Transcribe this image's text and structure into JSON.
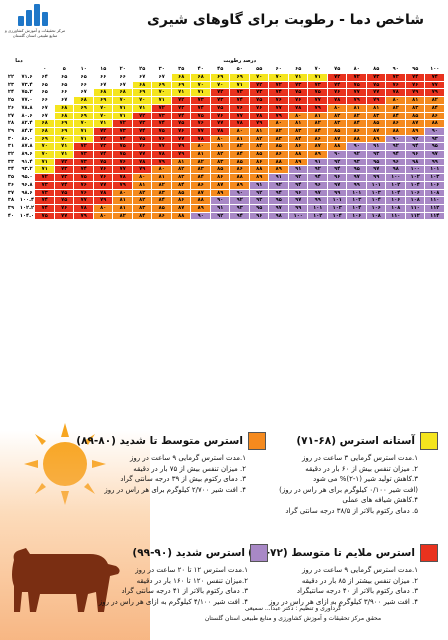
{
  "header": {
    "title": "شاخص دما - رطوبت برای گاوهای شیری",
    "logo_text": "مرکز تحقیقات و آموزش کشاورزی و منابع طبیعی استان گلستان"
  },
  "table": {
    "temp_c_label": "دما",
    "humidity_label": "درصد رطوبت",
    "humidity": [
      0,
      5,
      10,
      15,
      20,
      25,
      30,
      35,
      40,
      45,
      50,
      55,
      60,
      65,
      70,
      75,
      80,
      85,
      90,
      95,
      100
    ],
    "rows": [
      {
        "c": "۲۲",
        "f": "۷۱.۶",
        "v": [
          64,
          65,
          65,
          66,
          66,
          67,
          67,
          68,
          68,
          69,
          69,
          70,
          70,
          71,
          71,
          72,
          72,
          73,
          73,
          74,
          74
        ]
      },
      {
        "c": "۲۳",
        "f": "۷۳.۴",
        "v": [
          65,
          65,
          66,
          67,
          67,
          68,
          69,
          69,
          70,
          70,
          71,
          72,
          72,
          73,
          73,
          74,
          75,
          75,
          76,
          76,
          77
        ]
      },
      {
        "c": "۲۴",
        "f": "۷۵.۲",
        "v": [
          65,
          66,
          67,
          68,
          68,
          69,
          70,
          71,
          71,
          72,
          73,
          73,
          74,
          75,
          75,
          76,
          77,
          77,
          78,
          79,
          79
        ]
      },
      {
        "c": "۲۵",
        "f": "۷۷.۰",
        "v": [
          66,
          67,
          68,
          69,
          70,
          70,
          71,
          72,
          73,
          73,
          74,
          75,
          76,
          76,
          77,
          78,
          79,
          79,
          80,
          81,
          82
        ]
      },
      {
        "c": "۲۶",
        "f": "۷۸.۸",
        "v": [
          67,
          68,
          69,
          70,
          71,
          71,
          72,
          73,
          74,
          75,
          76,
          76,
          77,
          78,
          79,
          80,
          81,
          81,
          82,
          83,
          84
        ]
      },
      {
        "c": "۲۷",
        "f": "۸۰.۶",
        "v": [
          67,
          68,
          69,
          70,
          71,
          72,
          73,
          74,
          75,
          76,
          77,
          78,
          79,
          80,
          81,
          82,
          82,
          83,
          84,
          85,
          86
        ]
      },
      {
        "c": "۲۸",
        "f": "۸۲.۴",
        "v": [
          68,
          69,
          70,
          71,
          72,
          73,
          74,
          75,
          76,
          77,
          78,
          79,
          80,
          81,
          82,
          83,
          84,
          85,
          86,
          87,
          88
        ]
      },
      {
        "c": "۲۹",
        "f": "۸۴.۲",
        "v": [
          68,
          69,
          71,
          72,
          73,
          74,
          75,
          76,
          77,
          78,
          80,
          81,
          82,
          83,
          84,
          85,
          86,
          87,
          88,
          89,
          90
        ]
      },
      {
        "c": "۳۰",
        "f": "۸۶.۰",
        "v": [
          69,
          70,
          71,
          72,
          74,
          75,
          76,
          77,
          78,
          80,
          81,
          82,
          83,
          84,
          86,
          87,
          88,
          89,
          90,
          92,
          93
        ]
      },
      {
        "c": "۳۱",
        "f": "۸۷.۸",
        "v": [
          70,
          71,
          72,
          73,
          75,
          76,
          77,
          79,
          80,
          81,
          82,
          84,
          85,
          86,
          87,
          88,
          90,
          91,
          92,
          94,
          95
        ]
      },
      {
        "c": "۳۲",
        "f": "۸۹.۶",
        "v": [
          70,
          71,
          73,
          74,
          75,
          77,
          78,
          79,
          81,
          82,
          84,
          85,
          86,
          88,
          89,
          90,
          92,
          93,
          94,
          96,
          97
        ]
      },
      {
        "c": "۳۳",
        "f": "۹۱.۴",
        "v": [
          71,
          72,
          73,
          75,
          76,
          78,
          79,
          81,
          82,
          83,
          85,
          86,
          88,
          89,
          91,
          92,
          93,
          95,
          96,
          98,
          99
        ]
      },
      {
        "c": "۳۴",
        "f": "۹۳.۲",
        "v": [
          71,
          73,
          74,
          76,
          77,
          79,
          80,
          82,
          83,
          85,
          86,
          88,
          89,
          91,
          92,
          94,
          95,
          97,
          98,
          100,
          101
        ]
      },
      {
        "c": "۳۵",
        "f": "۹۵.۰",
        "v": [
          72,
          73,
          75,
          76,
          78,
          80,
          81,
          83,
          84,
          86,
          88,
          89,
          91,
          92,
          94,
          96,
          97,
          99,
          100,
          102,
          103
        ]
      },
      {
        "c": "۳۶",
        "f": "۹۶.۸",
        "v": [
          73,
          74,
          76,
          77,
          79,
          81,
          82,
          84,
          86,
          87,
          89,
          91,
          92,
          94,
          96,
          97,
          99,
          101,
          102,
          104,
          106
        ]
      },
      {
        "c": "۳۷",
        "f": "۹۸.۶",
        "v": [
          73,
          75,
          76,
          78,
          80,
          82,
          83,
          85,
          87,
          89,
          90,
          92,
          94,
          96,
          97,
          99,
          101,
          103,
          104,
          106,
          108
        ]
      },
      {
        "c": "۳۸",
        "f": "۱۰۰.۴",
        "v": [
          74,
          75,
          77,
          79,
          81,
          82,
          84,
          86,
          88,
          90,
          92,
          93,
          95,
          97,
          99,
          101,
          103,
          104,
          106,
          108,
          110
        ]
      },
      {
        "c": "۳۹",
        "f": "۱۰۲.۲",
        "v": [
          74,
          76,
          78,
          80,
          81,
          83,
          85,
          87,
          89,
          91,
          93,
          95,
          97,
          99,
          101,
          103,
          104,
          106,
          108,
          110,
          112
        ]
      },
      {
        "c": "۴۰",
        "f": "۱۰۴.۰",
        "v": [
          75,
          77,
          79,
          80,
          82,
          84,
          86,
          88,
          90,
          92,
          94,
          96,
          98,
          100,
          102,
          104,
          106,
          108,
          110,
          112,
          114
        ]
      }
    ]
  },
  "legend": {
    "mild": {
      "title": "آستانه استرس (۶۸-۷۱)",
      "items": [
        "۱.مدت استرس گرمایی ۳ ساعت در روز",
        "۲. میزان تنفس بیش از ۶۰ بار در دقیقه",
        "۳.کاهش تولید شیر (۱-۲)% می شود",
        "(افت شیر ۰/۱۰۰ کیلوگرم برای هر راس در روز)",
        "۴.کاهش شیافه های عملی",
        "۵. دمای رکتوم بالاتر از ۳۸/۵ درجه سانتی گراد"
      ]
    },
    "moderate": {
      "title": "استرس متوسط تا شدید (۸۰-۸۹)",
      "items": [
        "۱.مدت استرس گرمایی ۹ ساعت در روز",
        "۲. میزان تنفس بیش از ۷۵ بار در دقیقه",
        "۳. دمای رکتوم بیش از ۳۹ درجه سانتی گراد",
        "۴. افت شیر ۲/۷۰۰ کیلوگرم برای هر راس در روز"
      ]
    },
    "mild_moderate": {
      "title": "استرس ملایم تا متوسط (۷۲-۷۹)",
      "items": [
        "۱.مدت استرس گرمایی ۹ ساعت در روز",
        "۲. میزان تنفس بیشتر از ۸۵ بار در دقیقه",
        "۳. دمای رکتوم بالاتر از ۴۰ درجه سانتیگراد",
        "۴. افت شیر ۳/۹۰۰ کیلوگرم به ازای هر راس در روز"
      ]
    },
    "severe": {
      "title": "استرس شدید (۹۰-۹۹)",
      "items": [
        "۱.مدت استرس ۱۲ تا ۲۰ ساعت در روز",
        "۲.میزان تنفس ۱۲۰ تا ۱۶۰ بار در دقیقه",
        "۳. دمای رکتوم بالاتر از ۴۱ درجه سانتی گراد",
        "۴. افت شیر ۴/۱۰۰ کیلوگرم به ازای هر راس در روز"
      ]
    }
  },
  "colors": {
    "mild": "#f5e51e",
    "moderate": "#f58a1e",
    "mild_moderate": "#e9321e",
    "severe": "#a888c6"
  },
  "credit": {
    "line1": "گردآوری و تنظیم : دکتر عبدا... سمیعی",
    "line2": "محقق مرکز تحقیقات و آموزش کشاورزی و منابع طبیعی استان گلستان"
  }
}
